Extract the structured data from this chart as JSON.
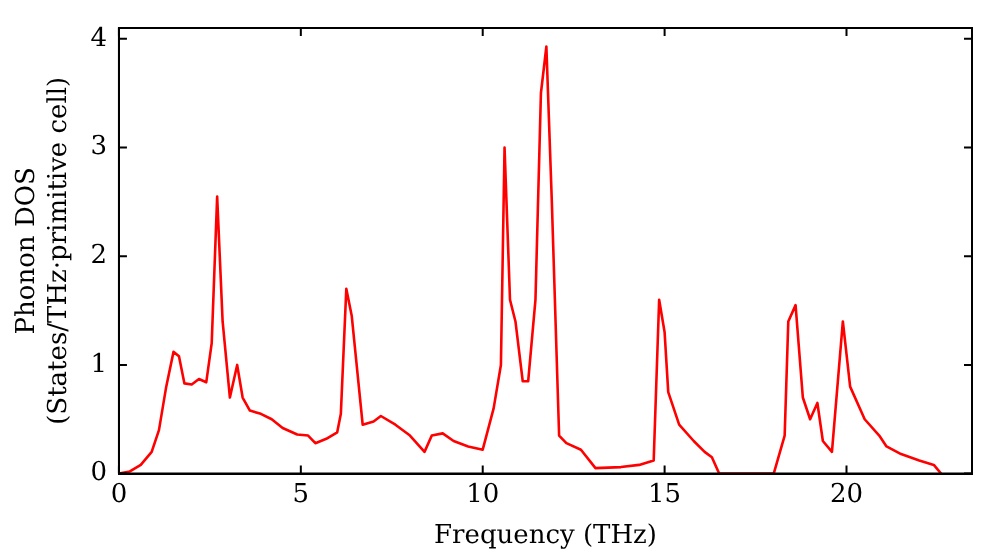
{
  "chart_data": {
    "type": "line",
    "xlabel": "Frequency (THz)",
    "ylabel": "Phonon DOS\n(States/THz·primitive cell)",
    "xlim": [
      0,
      23.45
    ],
    "ylim": [
      0,
      4.1
    ],
    "xticks": [
      0,
      5,
      10,
      15,
      20
    ],
    "yticks": [
      0,
      1,
      2,
      3,
      4
    ],
    "grid": false,
    "legend": false,
    "marker": "none",
    "line_style": "solid",
    "series": [
      {
        "color": "#ff0000",
        "x": [
          0,
          0.3,
          0.6,
          0.9,
          1.1,
          1.3,
          1.5,
          1.65,
          1.8,
          2.0,
          2.2,
          2.4,
          2.55,
          2.7,
          2.85,
          3.05,
          3.25,
          3.4,
          3.6,
          3.9,
          4.2,
          4.5,
          4.9,
          5.2,
          5.4,
          5.7,
          6.0,
          6.1,
          6.25,
          6.4,
          6.7,
          7.0,
          7.2,
          7.6,
          8.0,
          8.4,
          8.6,
          8.9,
          9.2,
          9.6,
          10.0,
          10.3,
          10.5,
          10.6,
          10.75,
          10.9,
          11.1,
          11.25,
          11.45,
          11.6,
          11.75,
          11.9,
          12.1,
          12.3,
          12.7,
          13.1,
          13.8,
          14.3,
          14.7,
          14.85,
          15.0,
          15.1,
          15.4,
          15.8,
          16.1,
          16.3,
          16.5,
          18.0,
          18.3,
          18.4,
          18.6,
          18.8,
          19.0,
          19.2,
          19.35,
          19.6,
          19.9,
          20.1,
          20.5,
          20.9,
          21.1,
          21.5,
          22.0,
          22.4,
          22.6
        ],
        "values": [
          0,
          0.02,
          0.08,
          0.2,
          0.4,
          0.8,
          1.12,
          1.08,
          0.83,
          0.82,
          0.87,
          0.84,
          1.2,
          2.55,
          1.4,
          0.7,
          1.0,
          0.7,
          0.58,
          0.55,
          0.5,
          0.42,
          0.36,
          0.35,
          0.28,
          0.32,
          0.38,
          0.55,
          1.7,
          1.45,
          0.45,
          0.48,
          0.53,
          0.45,
          0.35,
          0.2,
          0.35,
          0.37,
          0.3,
          0.25,
          0.22,
          0.6,
          1.0,
          3.0,
          1.6,
          1.4,
          0.85,
          0.85,
          1.6,
          3.5,
          3.93,
          2.5,
          0.35,
          0.28,
          0.22,
          0.05,
          0.06,
          0.08,
          0.12,
          1.6,
          1.3,
          0.75,
          0.45,
          0.3,
          0.2,
          0.15,
          0,
          0,
          0.35,
          1.4,
          1.55,
          0.7,
          0.5,
          0.65,
          0.3,
          0.2,
          1.4,
          0.8,
          0.5,
          0.35,
          0.25,
          0.18,
          0.12,
          0.08,
          0
        ]
      }
    ]
  }
}
